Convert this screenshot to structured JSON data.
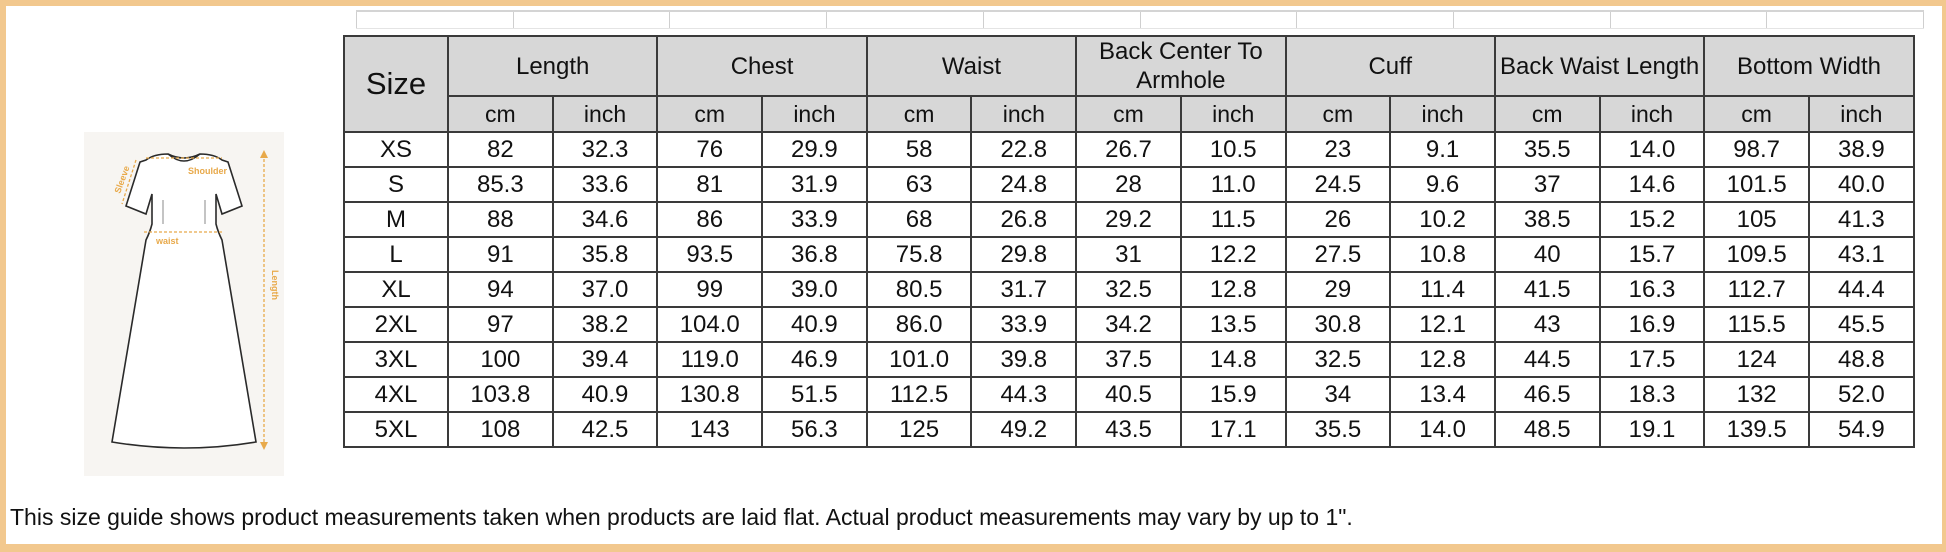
{
  "table": {
    "size_header": "Size",
    "groups": [
      "Length",
      "Chest",
      "Waist",
      "Back Center To Armhole",
      "Cuff",
      "Back Waist Length",
      "Bottom Width"
    ],
    "units": [
      "cm",
      "inch"
    ],
    "rows": [
      {
        "size": "XS",
        "values": [
          "82",
          "32.3",
          "76",
          "29.9",
          "58",
          "22.8",
          "26.7",
          "10.5",
          "23",
          "9.1",
          "35.5",
          "14.0",
          "98.7",
          "38.9"
        ]
      },
      {
        "size": "S",
        "values": [
          "85.3",
          "33.6",
          "81",
          "31.9",
          "63",
          "24.8",
          "28",
          "11.0",
          "24.5",
          "9.6",
          "37",
          "14.6",
          "101.5",
          "40.0"
        ]
      },
      {
        "size": "M",
        "values": [
          "88",
          "34.6",
          "86",
          "33.9",
          "68",
          "26.8",
          "29.2",
          "11.5",
          "26",
          "10.2",
          "38.5",
          "15.2",
          "105",
          "41.3"
        ]
      },
      {
        "size": "L",
        "values": [
          "91",
          "35.8",
          "93.5",
          "36.8",
          "75.8",
          "29.8",
          "31",
          "12.2",
          "27.5",
          "10.8",
          "40",
          "15.7",
          "109.5",
          "43.1"
        ]
      },
      {
        "size": "XL",
        "values": [
          "94",
          "37.0",
          "99",
          "39.0",
          "80.5",
          "31.7",
          "32.5",
          "12.8",
          "29",
          "11.4",
          "41.5",
          "16.3",
          "112.7",
          "44.4"
        ]
      },
      {
        "size": "2XL",
        "values": [
          "97",
          "38.2",
          "104.0",
          "40.9",
          "86.0",
          "33.9",
          "34.2",
          "13.5",
          "30.8",
          "12.1",
          "43",
          "16.9",
          "115.5",
          "45.5"
        ]
      },
      {
        "size": "3XL",
        "values": [
          "100",
          "39.4",
          "119.0",
          "46.9",
          "101.0",
          "39.8",
          "37.5",
          "14.8",
          "32.5",
          "12.8",
          "44.5",
          "17.5",
          "124",
          "48.8"
        ]
      },
      {
        "size": "4XL",
        "values": [
          "103.8",
          "40.9",
          "130.8",
          "51.5",
          "112.5",
          "44.3",
          "40.5",
          "15.9",
          "34",
          "13.4",
          "46.5",
          "18.3",
          "132",
          "52.0"
        ]
      },
      {
        "size": "5XL",
        "values": [
          "108",
          "42.5",
          "143",
          "56.3",
          "125",
          "49.2",
          "43.5",
          "17.1",
          "35.5",
          "14.0",
          "48.5",
          "19.1",
          "139.5",
          "54.9"
        ]
      }
    ]
  },
  "illustration": {
    "labels": {
      "shoulder": "Shoulder",
      "sleeve": "Sleeve",
      "waist": "waist",
      "length": "Length"
    },
    "accent_color": "#e8a94a"
  },
  "note": "This size guide shows product measurements taken when products are laid flat. Actual product measurements may vary by up to 1\".",
  "colors": {
    "frame": "#f2c88e",
    "header_bg": "#d7d7d7",
    "grid": "#3a3a3a"
  }
}
